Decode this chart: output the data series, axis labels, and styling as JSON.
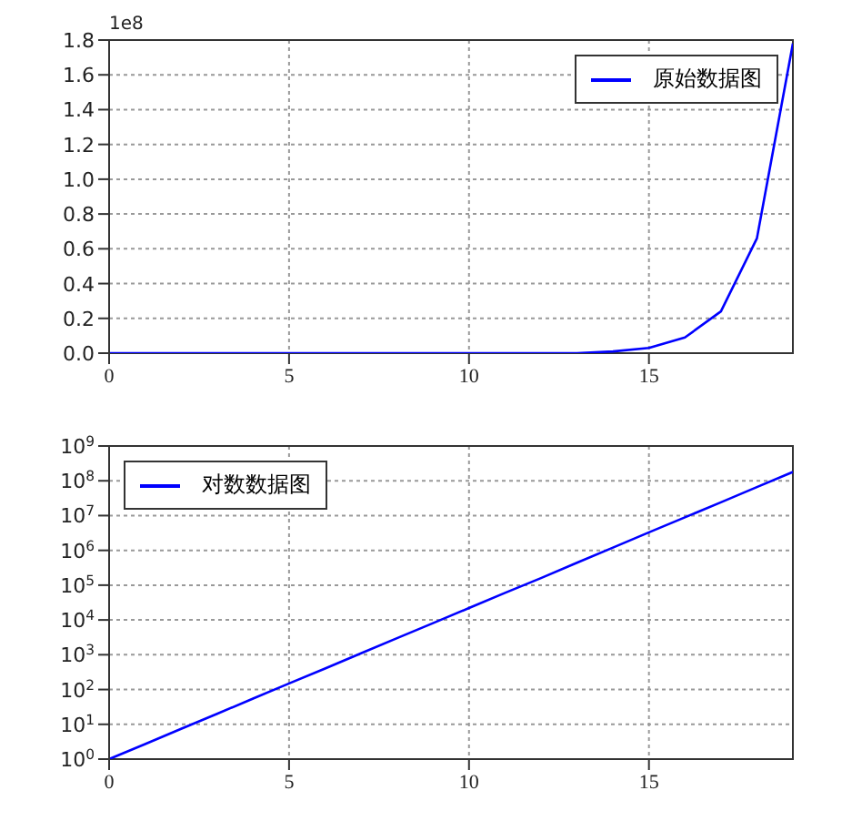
{
  "chart_data": [
    {
      "type": "line",
      "x": [
        0,
        1,
        2,
        3,
        4,
        5,
        6,
        7,
        8,
        9,
        10,
        11,
        12,
        13,
        14,
        15,
        16,
        17,
        18,
        19
      ],
      "series": [
        {
          "name": "原始数据图",
          "color": "#0000ff",
          "values": [
            0,
            0,
            0,
            0,
            0,
            0,
            0,
            0,
            0,
            0,
            0,
            0,
            0,
            0,
            0.01,
            0.03,
            0.09,
            0.24,
            0.66,
            1.78
          ]
        }
      ],
      "xlim": [
        0,
        19
      ],
      "xticks": [
        0,
        5,
        10,
        15
      ],
      "ylim": [
        0,
        1.8
      ],
      "yticks": [
        {
          "value": 0,
          "label": "0.0"
        },
        0.2,
        0.4,
        0.6,
        0.8,
        {
          "value": 1,
          "label": "1.0"
        },
        1.2,
        1.4,
        1.6,
        1.8
      ],
      "annotations": [
        "1e8"
      ],
      "grid": true,
      "legend": "top right"
    },
    {
      "type": "line",
      "x": [
        0,
        1,
        2,
        3,
        4,
        5,
        6,
        7,
        8,
        9,
        10,
        11,
        12,
        13,
        14,
        15,
        16,
        17,
        18,
        19
      ],
      "series": [
        {
          "name": "对数数据图",
          "color": "#0000ff",
          "values": [
            1,
            2.7,
            7.4,
            20,
            55,
            150,
            400,
            1100,
            3000,
            8100,
            22000,
            60000,
            160000,
            440000,
            1200000,
            3300000,
            8900000,
            24000000,
            66000000,
            180000000
          ]
        }
      ],
      "xlim": [
        0,
        19
      ],
      "xticks": [
        0,
        5,
        10,
        15
      ],
      "ylim": [
        1,
        1000000000
      ],
      "log": "y",
      "yticks": [
        {
          "value": 1,
          "label": "10$^{0}$"
        },
        {
          "value": 10,
          "label": "10$^{1}$"
        },
        {
          "value": 100,
          "label": "10$^{2}$"
        },
        {
          "value": 1000,
          "label": "10$^{3}$"
        },
        {
          "value": 10000,
          "label": "10$^{4}$"
        },
        {
          "value": 100000,
          "label": "10$^{5}$"
        },
        {
          "value": 1000000,
          "label": "10$^{6}$"
        },
        {
          "value": 10000000,
          "label": "10$^{7}$"
        },
        {
          "value": 100000000,
          "label": "10$^{8}$"
        },
        {
          "value": 1000000000,
          "label": "10$^{9}$"
        }
      ],
      "grid": true,
      "legend": "top left"
    }
  ]
}
